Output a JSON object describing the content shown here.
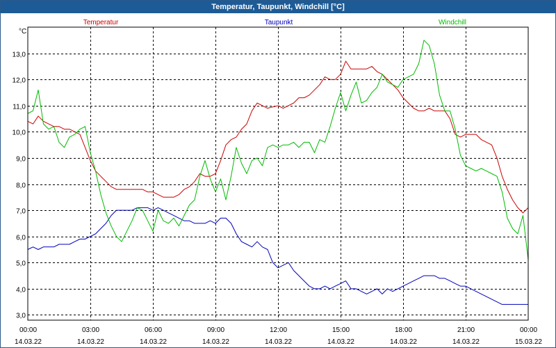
{
  "window": {
    "title": "Temperatur, Taupunkt, Windchill [°C]"
  },
  "chart_data": {
    "type": "line",
    "title": "Temperatur, Taupunkt, Windchill [°C]",
    "ylabel": "°C",
    "xlabel": "",
    "ylim": [
      2.8,
      14.0
    ],
    "xlim": [
      0,
      24
    ],
    "grid": true,
    "y_ticks": [
      "3,0",
      "4,0",
      "5,0",
      "6,0",
      "7,0",
      "8,0",
      "9,0",
      "10,0",
      "11,0",
      "12,0",
      "13,0"
    ],
    "x_ticks": [
      {
        "time": "00:00",
        "date": "14.03.22"
      },
      {
        "time": "03:00",
        "date": "14.03.22"
      },
      {
        "time": "06:00",
        "date": "14.03.22"
      },
      {
        "time": "09:00",
        "date": "14.03.22"
      },
      {
        "time": "12:00",
        "date": "14.03.22"
      },
      {
        "time": "15:00",
        "date": "14.03.22"
      },
      {
        "time": "18:00",
        "date": "14.03.22"
      },
      {
        "time": "21:00",
        "date": "14.03.22"
      },
      {
        "time": "00:00",
        "date": "15.03.22"
      }
    ],
    "series": [
      {
        "name": "Temperatur",
        "color": "#cc0000",
        "x": [
          0,
          0.25,
          0.5,
          0.75,
          1,
          1.25,
          1.5,
          1.75,
          2,
          2.25,
          2.5,
          2.75,
          3,
          3.25,
          3.5,
          3.75,
          4,
          4.25,
          4.5,
          4.75,
          5,
          5.25,
          5.5,
          5.75,
          6,
          6.25,
          6.5,
          6.75,
          7,
          7.25,
          7.5,
          7.75,
          8,
          8.25,
          8.5,
          8.75,
          9,
          9.25,
          9.5,
          9.75,
          10,
          10.25,
          10.5,
          10.75,
          11,
          11.25,
          11.5,
          11.75,
          12,
          12.25,
          12.5,
          12.75,
          13,
          13.25,
          13.5,
          13.75,
          14,
          14.25,
          14.5,
          14.75,
          15,
          15.25,
          15.5,
          15.75,
          16,
          16.25,
          16.5,
          16.75,
          17,
          17.25,
          17.5,
          17.75,
          18,
          18.25,
          18.5,
          18.75,
          19,
          19.25,
          19.5,
          19.75,
          20,
          20.25,
          20.5,
          20.75,
          21,
          21.25,
          21.5,
          21.75,
          22,
          22.25,
          22.5,
          22.75,
          23,
          23.25,
          23.5,
          23.75,
          24
        ],
        "values": [
          10.4,
          10.3,
          10.6,
          10.4,
          10.3,
          10.2,
          10.2,
          10.1,
          10.1,
          10.0,
          9.9,
          9.4,
          8.9,
          8.5,
          8.3,
          8.1,
          7.9,
          7.8,
          7.8,
          7.8,
          7.8,
          7.8,
          7.8,
          7.7,
          7.7,
          7.6,
          7.5,
          7.5,
          7.5,
          7.6,
          7.8,
          7.9,
          8.1,
          8.4,
          8.3,
          8.3,
          8.4,
          8.9,
          9.5,
          9.7,
          9.8,
          10.1,
          10.3,
          10.8,
          11.1,
          11.0,
          10.9,
          10.95,
          11.0,
          10.9,
          11.0,
          11.1,
          11.3,
          11.3,
          11.4,
          11.6,
          11.8,
          12.1,
          12.0,
          12.0,
          12.2,
          12.7,
          12.4,
          12.4,
          12.4,
          12.4,
          12.5,
          12.3,
          12.2,
          12.0,
          11.8,
          11.6,
          11.3,
          11.1,
          10.9,
          10.8,
          10.8,
          10.9,
          10.8,
          10.8,
          10.8,
          10.5,
          9.9,
          9.8,
          9.9,
          9.9,
          9.9,
          9.7,
          9.6,
          9.5,
          9.0,
          8.3,
          7.8,
          7.4,
          7.1,
          6.9,
          7.1
        ]
      },
      {
        "name": "Taupunkt",
        "color": "#0000bb",
        "x": [
          0,
          0.25,
          0.5,
          0.75,
          1,
          1.25,
          1.5,
          1.75,
          2,
          2.25,
          2.5,
          2.75,
          3,
          3.25,
          3.5,
          3.75,
          4,
          4.25,
          4.5,
          4.75,
          5,
          5.25,
          5.5,
          5.75,
          6,
          6.25,
          6.5,
          6.75,
          7,
          7.25,
          7.5,
          7.75,
          8,
          8.25,
          8.5,
          8.75,
          9,
          9.25,
          9.5,
          9.75,
          10,
          10.25,
          10.5,
          10.75,
          11,
          11.25,
          11.5,
          11.75,
          12,
          12.25,
          12.5,
          12.75,
          13,
          13.25,
          13.5,
          13.75,
          14,
          14.25,
          14.5,
          14.75,
          15,
          15.25,
          15.5,
          15.75,
          16,
          16.25,
          16.5,
          16.75,
          17,
          17.25,
          17.5,
          17.75,
          18,
          18.25,
          18.5,
          18.75,
          19,
          19.25,
          19.5,
          19.75,
          20,
          20.25,
          20.5,
          20.75,
          21,
          21.25,
          21.5,
          21.75,
          22,
          22.25,
          22.5,
          22.75,
          23,
          23.25,
          23.5,
          23.75,
          24
        ],
        "values": [
          5.5,
          5.6,
          5.5,
          5.6,
          5.6,
          5.6,
          5.7,
          5.7,
          5.7,
          5.8,
          5.9,
          5.9,
          6.0,
          6.1,
          6.3,
          6.5,
          6.8,
          7.0,
          7.0,
          7.0,
          7.0,
          7.1,
          7.1,
          7.1,
          7.0,
          7.1,
          7.0,
          6.9,
          6.8,
          6.7,
          6.6,
          6.6,
          6.5,
          6.5,
          6.5,
          6.6,
          6.5,
          6.7,
          6.7,
          6.5,
          6.1,
          5.8,
          5.7,
          5.6,
          5.8,
          5.6,
          5.5,
          5.0,
          4.8,
          4.9,
          5.0,
          4.7,
          4.5,
          4.3,
          4.1,
          4.0,
          4.0,
          4.1,
          4.0,
          4.1,
          4.2,
          4.3,
          4.0,
          4.0,
          3.9,
          3.8,
          3.9,
          4.0,
          3.8,
          4.0,
          3.9,
          4.0,
          4.1,
          4.2,
          4.3,
          4.4,
          4.5,
          4.5,
          4.5,
          4.4,
          4.4,
          4.3,
          4.2,
          4.1,
          4.1,
          4.0,
          3.9,
          3.8,
          3.7,
          3.6,
          3.5,
          3.4,
          3.4,
          3.4,
          3.4,
          3.4,
          3.4
        ]
      },
      {
        "name": "Windchill",
        "color": "#00bb00",
        "x": [
          0,
          0.25,
          0.5,
          0.75,
          1,
          1.25,
          1.5,
          1.75,
          2,
          2.25,
          2.5,
          2.75,
          3,
          3.25,
          3.5,
          3.75,
          4,
          4.25,
          4.5,
          4.75,
          5,
          5.25,
          5.5,
          5.75,
          6,
          6.25,
          6.5,
          6.75,
          7,
          7.25,
          7.5,
          7.75,
          8,
          8.25,
          8.5,
          8.75,
          9,
          9.25,
          9.5,
          9.75,
          10,
          10.25,
          10.5,
          10.75,
          11,
          11.25,
          11.5,
          11.75,
          12,
          12.25,
          12.5,
          12.75,
          13,
          13.25,
          13.5,
          13.75,
          14,
          14.25,
          14.5,
          14.75,
          15,
          15.25,
          15.5,
          15.75,
          16,
          16.25,
          16.5,
          16.75,
          17,
          17.25,
          17.5,
          17.75,
          18,
          18.25,
          18.5,
          18.75,
          19,
          19.25,
          19.5,
          19.75,
          20,
          20.25,
          20.5,
          20.75,
          21,
          21.25,
          21.5,
          21.75,
          22,
          22.25,
          22.5,
          22.75,
          23,
          23.25,
          23.5,
          23.75,
          24
        ],
        "values": [
          10.7,
          10.8,
          11.6,
          10.3,
          10.1,
          10.2,
          9.6,
          9.4,
          9.8,
          9.9,
          10.1,
          10.2,
          9.2,
          8.5,
          7.6,
          6.9,
          6.4,
          6.0,
          5.8,
          6.2,
          6.6,
          7.1,
          7.0,
          6.6,
          6.2,
          7.0,
          6.6,
          6.5,
          6.7,
          6.4,
          6.8,
          7.2,
          7.4,
          8.3,
          8.9,
          8.2,
          7.7,
          8.2,
          7.4,
          8.3,
          9.4,
          8.8,
          8.4,
          8.9,
          9.0,
          8.7,
          9.4,
          9.5,
          9.4,
          9.5,
          9.5,
          9.6,
          9.4,
          9.6,
          9.6,
          9.2,
          9.7,
          9.6,
          10.2,
          10.9,
          11.5,
          10.8,
          11.4,
          11.9,
          11.1,
          11.2,
          11.5,
          11.7,
          12.2,
          11.9,
          11.8,
          11.7,
          12.0,
          12.1,
          12.2,
          12.6,
          13.5,
          13.3,
          12.6,
          11.4,
          10.8,
          10.8,
          10.1,
          9.1,
          8.7,
          8.6,
          8.5,
          8.6,
          8.5,
          8.4,
          8.3,
          7.7,
          6.7,
          6.3,
          6.1,
          6.8,
          5.1
        ]
      }
    ]
  }
}
